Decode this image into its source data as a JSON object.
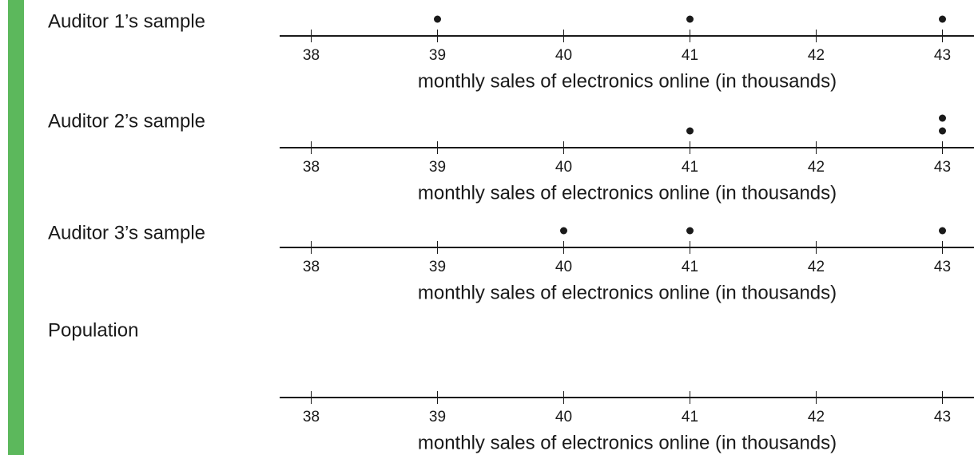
{
  "chart_data": [
    {
      "type": "dot",
      "title": "Auditor 1’s sample",
      "values": [
        39,
        41,
        43
      ],
      "xlim": [
        37.75,
        43.25
      ],
      "xticks": [
        38,
        39,
        40,
        41,
        42,
        43
      ],
      "xlabel": "monthly sales of electronics online (in thousands)"
    },
    {
      "type": "dot",
      "title": "Auditor 2’s sample",
      "values": [
        41,
        43,
        43
      ],
      "xlim": [
        37.75,
        43.25
      ],
      "xticks": [
        38,
        39,
        40,
        41,
        42,
        43
      ],
      "xlabel": "monthly sales of electronics online (in thousands)"
    },
    {
      "type": "dot",
      "title": "Auditor 3’s sample",
      "values": [
        40,
        41,
        43
      ],
      "xlim": [
        37.75,
        43.25
      ],
      "xticks": [
        38,
        39,
        40,
        41,
        42,
        43
      ],
      "xlabel": "monthly sales of electronics online (in thousands)"
    },
    {
      "type": "dot",
      "title": "Population",
      "values": [],
      "xlim": [
        37.75,
        43.25
      ],
      "xticks": [
        38,
        39,
        40,
        41,
        42,
        43
      ],
      "xlabel": "monthly sales of electronics online (in thousands)"
    }
  ]
}
